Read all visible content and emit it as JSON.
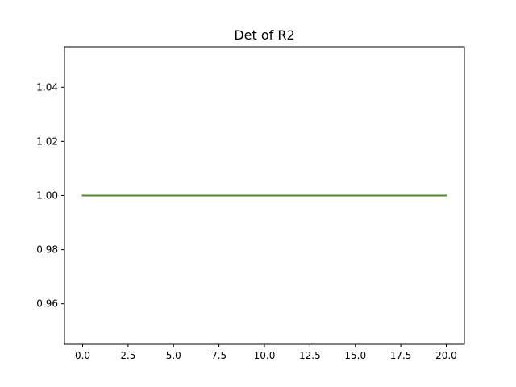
{
  "chart_data": {
    "type": "line",
    "title": "Det of R2",
    "xlabel": "",
    "ylabel": "",
    "xlim": [
      -1,
      21
    ],
    "ylim": [
      0.945,
      1.055
    ],
    "grid": false,
    "x_ticks": [
      0.0,
      2.5,
      5.0,
      7.5,
      10.0,
      12.5,
      15.0,
      17.5,
      20.0
    ],
    "x_tick_labels": [
      "0.0",
      "2.5",
      "5.0",
      "7.5",
      "10.0",
      "12.5",
      "15.0",
      "17.5",
      "20.0"
    ],
    "y_ticks": [
      0.96,
      0.98,
      1.0,
      1.02,
      1.04
    ],
    "y_tick_labels": [
      "0.96",
      "0.98",
      "1.00",
      "1.02",
      "1.04"
    ],
    "series": [
      {
        "color": "#1f77b4",
        "x": [
          0,
          20
        ],
        "y": [
          1.0,
          1.0
        ]
      },
      {
        "color": "#ff7f0e",
        "x": [
          0,
          20
        ],
        "y": [
          1.0,
          1.0
        ]
      },
      {
        "color": "#2ca02c",
        "x": [
          0,
          20
        ],
        "y": [
          1.0,
          1.0
        ]
      },
      {
        "color": "#4e8a2c",
        "x": [
          0,
          20
        ],
        "y": [
          1.0,
          1.0
        ]
      }
    ]
  }
}
